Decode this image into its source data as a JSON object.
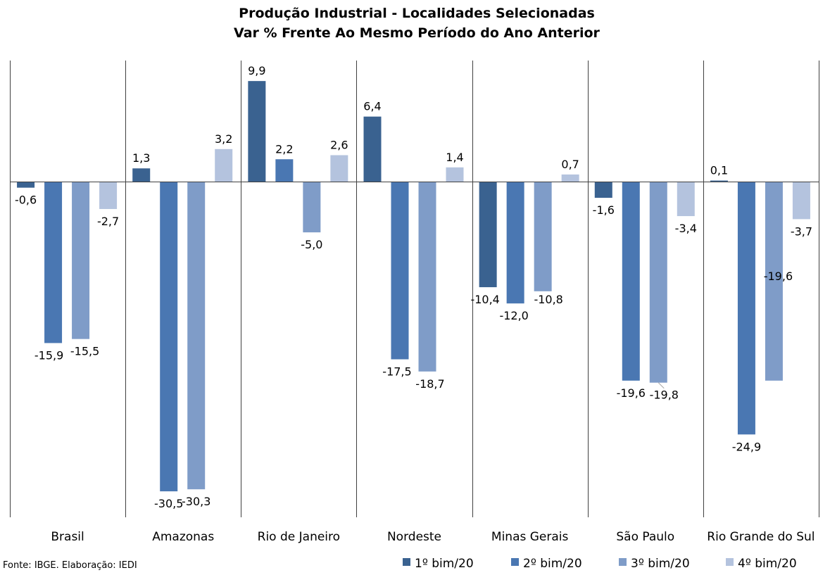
{
  "chart_data": {
    "type": "bar",
    "title": "Produção Industrial - Localidades Selecionadas",
    "subtitle": "Var % Frente Ao Mesmo Período do Ano Anterior",
    "categories": [
      "Brasil",
      "Amazonas",
      "Rio de Janeiro",
      "Nordeste",
      "Minas Gerais",
      "São Paulo",
      "Rio Grande do Sul"
    ],
    "series": [
      {
        "name": "1º bim/20",
        "color": "#3A6290",
        "values": [
          -0.6,
          1.3,
          9.9,
          6.4,
          -10.4,
          -1.6,
          0.1
        ],
        "labels": [
          "-0,6",
          "1,3",
          "9,9",
          "6,4",
          "-10,4",
          "-1,6",
          "0,1"
        ]
      },
      {
        "name": "2º bim/20",
        "color": "#4A77B2",
        "values": [
          -15.9,
          -30.5,
          2.2,
          -17.5,
          -12.0,
          -19.6,
          -24.9
        ],
        "labels": [
          "-15,9",
          "-30,5",
          "2,2",
          "-17,5",
          "-12,0",
          "-19,6",
          "-24,9"
        ]
      },
      {
        "name": "3º bim/20",
        "color": "#7F9CC8",
        "values": [
          -15.5,
          -30.3,
          -5.0,
          -18.7,
          -10.8,
          -19.8,
          -19.6
        ],
        "labels": [
          "-15,5",
          "-30,3",
          "-5,0",
          "-18,7",
          "-10,8",
          "-19,8",
          "-19,6"
        ]
      },
      {
        "name": "4º bim/20",
        "color": "#B4C3DE",
        "values": [
          -2.7,
          3.2,
          2.6,
          1.4,
          0.7,
          -3.4,
          -3.7
        ],
        "labels": [
          "-2,7",
          "3,2",
          "2,6",
          "1,4",
          "0,7",
          "-3,4",
          "-3,7"
        ]
      }
    ],
    "ylim": [
      -32.0,
      12.0
    ],
    "grid": false,
    "legend_position": "bottom-right",
    "source": "Fonte: IBGE. Elaboração: IEDI"
  }
}
